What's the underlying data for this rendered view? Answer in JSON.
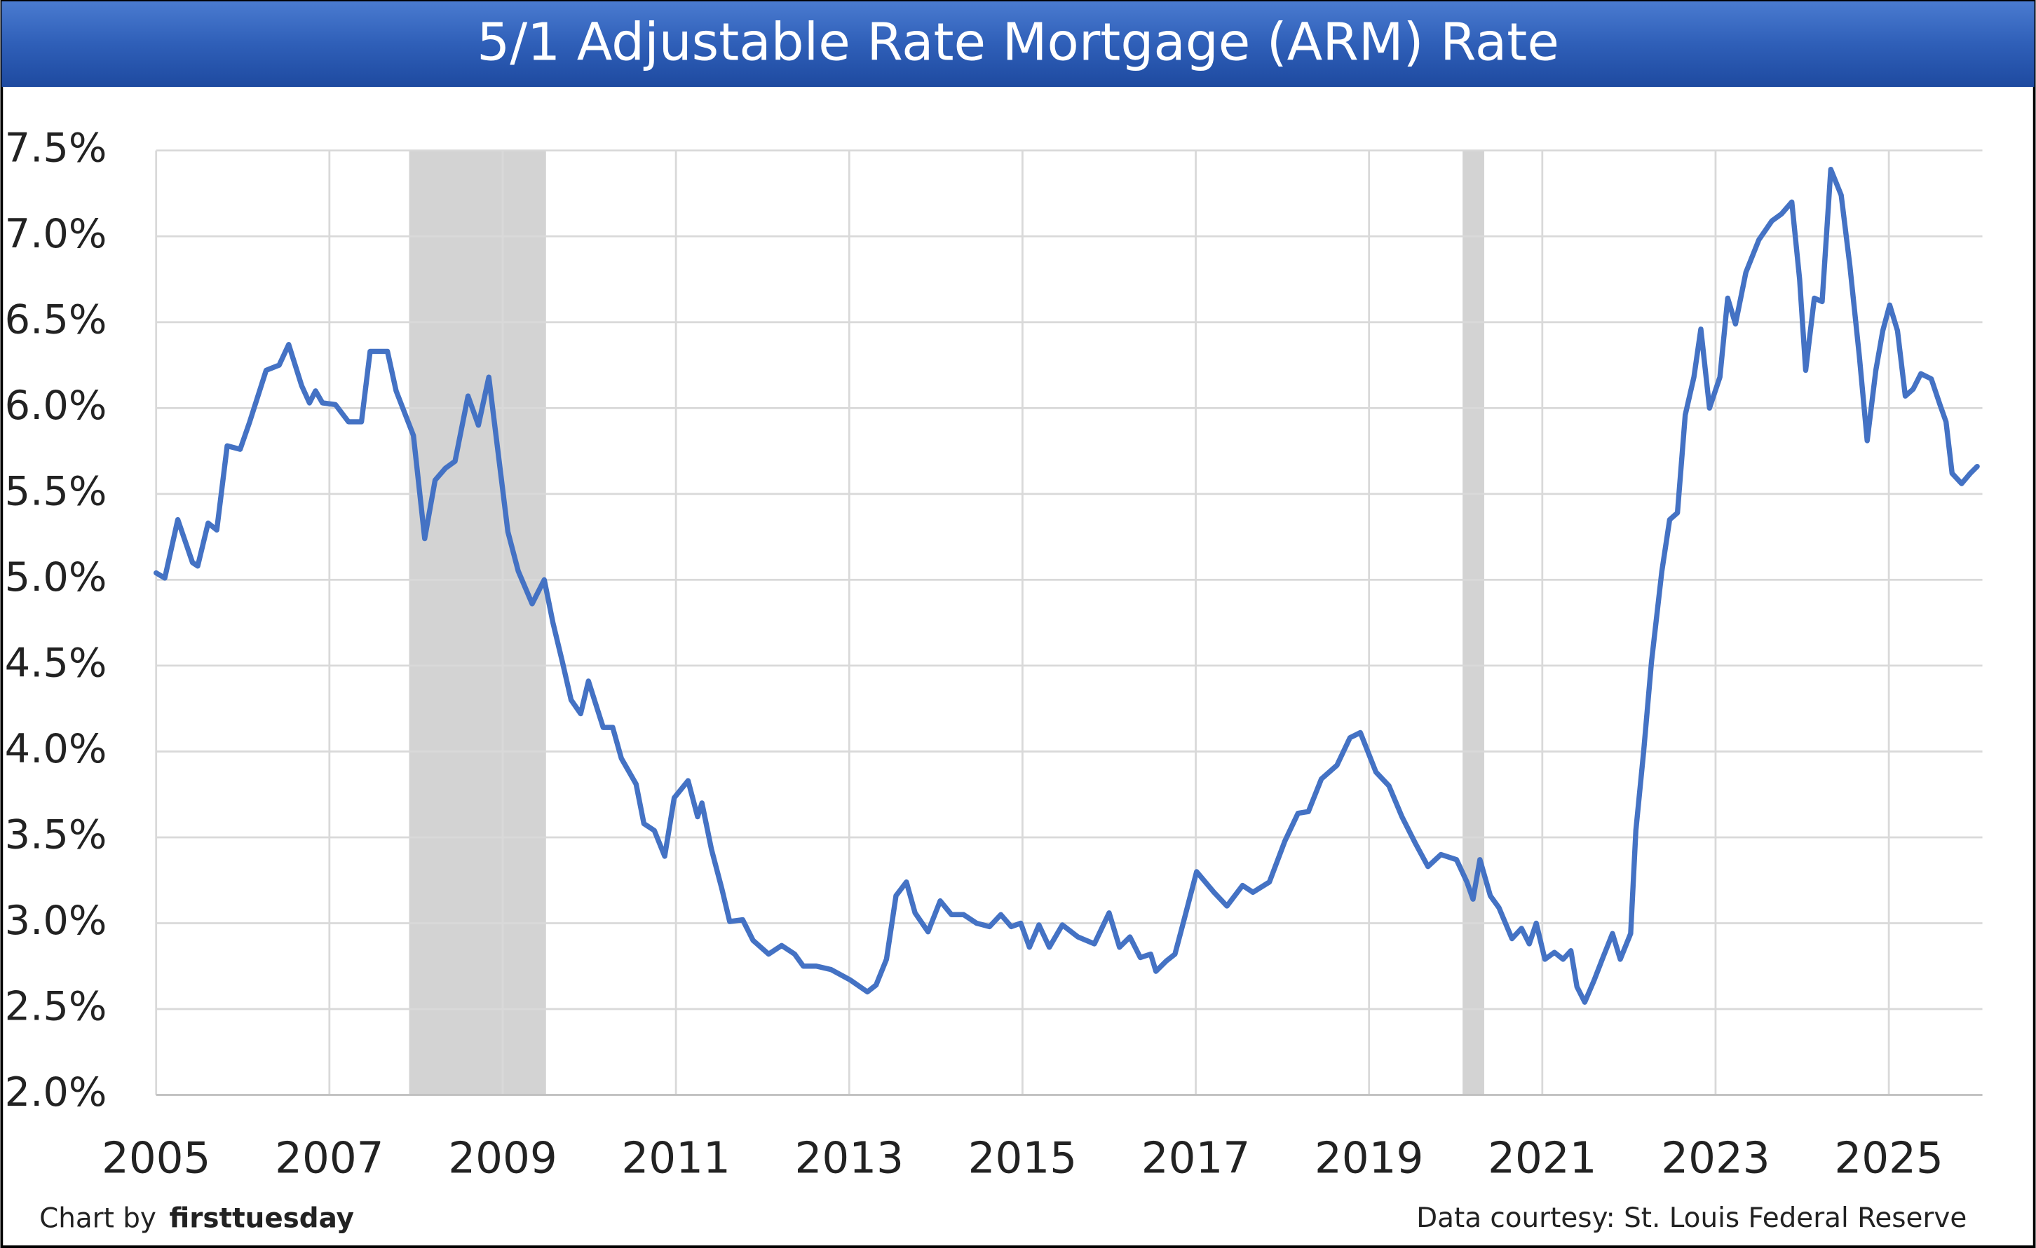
{
  "chart_data": {
    "type": "line",
    "title": "5/1 Adjustable Rate Mortgage (ARM) Rate",
    "credit_prefix": "Chart by",
    "credit_name": "firsttuesday",
    "source": "Data courtesy: St. Louis Federal Reserve",
    "xlim": [
      2005,
      2026.08
    ],
    "xticks": [
      2005,
      2007,
      2009,
      2011,
      2013,
      2015,
      2017,
      2019,
      2021,
      2023,
      2025
    ],
    "ylim": [
      2,
      7.5
    ],
    "yticks": [
      {
        "value": 2,
        "label": "2.0%"
      },
      {
        "value": 2.5,
        "label": "2.5%"
      },
      {
        "value": 3,
        "label": "3.0%"
      },
      {
        "value": 3.5,
        "label": "3.5%"
      },
      {
        "value": 4,
        "label": "4.0%"
      },
      {
        "value": 4.5,
        "label": "4.5%"
      },
      {
        "value": 5,
        "label": "5.0%"
      },
      {
        "value": 5.5,
        "label": "5.5%"
      },
      {
        "value": 6,
        "label": "6.0%"
      },
      {
        "value": 6.5,
        "label": "6.5%"
      },
      {
        "value": 7,
        "label": "7.0%"
      },
      {
        "value": 7.5,
        "label": "7.5%"
      }
    ],
    "grid": true,
    "recession_color": "#d3d3d3",
    "recessions": [
      {
        "start": 2007.92,
        "end": 2009.5
      },
      {
        "start": 2020.08,
        "end": 2020.33
      }
    ],
    "x": [
      2005.0,
      2005.1,
      2005.25,
      2005.42,
      2005.48,
      2005.6,
      2005.7,
      2005.82,
      2005.97,
      2006.08,
      2006.27,
      2006.42,
      2006.53,
      2006.68,
      2006.77,
      2006.84,
      2006.92,
      2007.07,
      2007.22,
      2007.37,
      2007.47,
      2007.67,
      2007.77,
      2007.97,
      2008.1,
      2008.22,
      2008.34,
      2008.45,
      2008.6,
      2008.72,
      2008.84,
      2008.94,
      2009.06,
      2009.18,
      2009.34,
      2009.48,
      2009.58,
      2009.69,
      2009.79,
      2009.9,
      2009.99,
      2010.16,
      2010.27,
      2010.37,
      2010.54,
      2010.63,
      2010.75,
      2010.87,
      2010.98,
      2011.14,
      2011.25,
      2011.3,
      2011.41,
      2011.53,
      2011.62,
      2011.77,
      2011.89,
      2012.07,
      2012.22,
      2012.37,
      2012.47,
      2012.62,
      2012.79,
      2013.01,
      2013.21,
      2013.31,
      2013.43,
      2013.54,
      2013.66,
      2013.76,
      2013.91,
      2014.05,
      2014.18,
      2014.32,
      2014.47,
      2014.62,
      2014.75,
      2014.87,
      2014.98,
      2015.08,
      2015.19,
      2015.31,
      2015.46,
      2015.64,
      2015.83,
      2016.0,
      2016.12,
      2016.24,
      2016.36,
      2016.48,
      2016.54,
      2016.66,
      2016.76,
      2016.86,
      2017.01,
      2017.21,
      2017.36,
      2017.54,
      2017.66,
      2017.85,
      2018.03,
      2018.18,
      2018.3,
      2018.45,
      2018.63,
      2018.78,
      2018.9,
      2019.08,
      2019.23,
      2019.38,
      2019.53,
      2019.68,
      2019.83,
      2020.01,
      2020.13,
      2020.2,
      2020.28,
      2020.4,
      2020.5,
      2020.65,
      2020.76,
      2020.85,
      2020.93,
      2021.03,
      2021.14,
      2021.24,
      2021.33,
      2021.4,
      2021.49,
      2021.6,
      2021.7,
      2021.81,
      2021.9,
      2022.02,
      2022.08,
      2022.17,
      2022.26,
      2022.38,
      2022.47,
      2022.56,
      2022.65,
      2022.75,
      2022.83,
      2022.93,
      2023.05,
      2023.14,
      2023.23,
      2023.35,
      2023.5,
      2023.65,
      2023.76,
      2023.88,
      2023.97,
      2024.04,
      2024.14,
      2024.23,
      2024.33,
      2024.45,
      2024.55,
      2024.66,
      2024.75,
      2024.85,
      2024.93,
      2025.01,
      2025.1,
      2025.19,
      2025.28,
      2025.37,
      2025.49,
      2025.59,
      2025.66,
      2025.73,
      2025.84,
      2025.94,
      2026.02
    ],
    "series": [
      {
        "name": "5/1 ARM",
        "color": "#4472c4",
        "values": [
          5.04,
          5.01,
          5.35,
          5.1,
          5.08,
          5.33,
          5.29,
          5.78,
          5.76,
          5.92,
          6.22,
          6.25,
          6.37,
          6.13,
          6.03,
          6.1,
          6.03,
          6.02,
          5.92,
          5.92,
          6.33,
          6.33,
          6.1,
          5.84,
          5.24,
          5.58,
          5.65,
          5.69,
          6.07,
          5.9,
          6.18,
          5.77,
          5.28,
          5.05,
          4.86,
          5.0,
          4.75,
          4.52,
          4.3,
          4.22,
          4.41,
          4.14,
          4.14,
          3.96,
          3.81,
          3.58,
          3.54,
          3.39,
          3.73,
          3.83,
          3.62,
          3.7,
          3.43,
          3.2,
          3.01,
          3.02,
          2.9,
          2.82,
          2.87,
          2.82,
          2.75,
          2.75,
          2.73,
          2.67,
          2.6,
          2.64,
          2.79,
          3.16,
          3.24,
          3.06,
          2.95,
          3.13,
          3.05,
          3.05,
          3.0,
          2.98,
          3.05,
          2.98,
          3.0,
          2.86,
          2.99,
          2.86,
          2.99,
          2.92,
          2.88,
          3.06,
          2.86,
          2.92,
          2.8,
          2.82,
          2.72,
          2.78,
          2.82,
          3.01,
          3.3,
          3.18,
          3.1,
          3.22,
          3.18,
          3.24,
          3.48,
          3.64,
          3.65,
          3.84,
          3.92,
          4.08,
          4.11,
          3.88,
          3.8,
          3.62,
          3.47,
          3.33,
          3.4,
          3.37,
          3.24,
          3.14,
          3.37,
          3.16,
          3.09,
          2.91,
          2.97,
          2.88,
          3.0,
          2.79,
          2.83,
          2.79,
          2.84,
          2.63,
          2.54,
          2.67,
          2.8,
          2.94,
          2.79,
          2.94,
          3.54,
          4.0,
          4.52,
          5.05,
          5.35,
          5.39,
          5.96,
          6.18,
          6.46,
          6.0,
          6.18,
          6.64,
          6.49,
          6.79,
          6.98,
          7.09,
          7.13,
          7.2,
          6.75,
          6.22,
          6.64,
          6.62,
          7.39,
          7.24,
          6.83,
          6.3,
          5.81,
          6.22,
          6.45,
          6.6,
          6.45,
          6.07,
          6.11,
          6.2,
          6.17,
          6.02,
          5.92,
          5.62,
          5.56,
          5.62,
          5.66
        ]
      }
    ]
  }
}
